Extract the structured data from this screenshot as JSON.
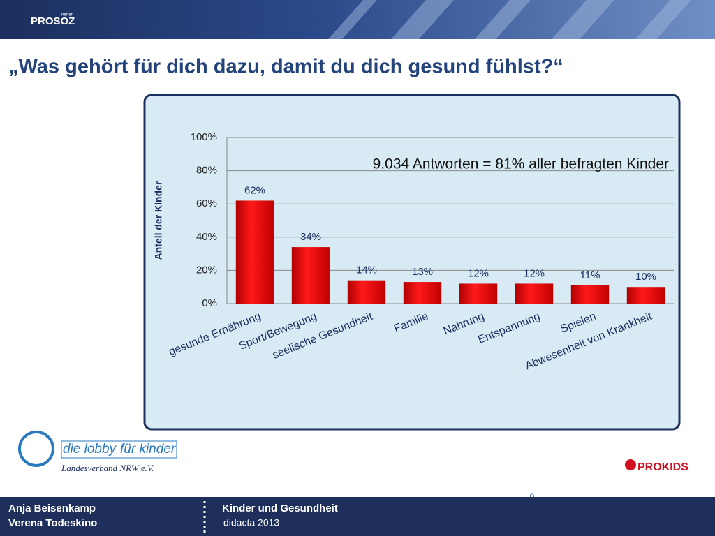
{
  "header": {
    "logo": "PROSOZ",
    "logo_sub": "herten"
  },
  "title": "„Was gehört für dich dazu, damit du dich gesund fühlst?“",
  "chart_data": {
    "type": "bar",
    "ylabel": "Anteil der Kinder",
    "annotation": "9.034 Antworten = 81% aller befragten Kinder",
    "categories": [
      "gesunde Ernährung",
      "Sport/Bewegung",
      "seelische Gesundheit",
      "Familie",
      "Nahrung",
      "Entspannung",
      "Spielen",
      "Abwesenheit von Krankheit"
    ],
    "values": [
      62,
      34,
      14,
      13,
      12,
      12,
      11,
      10
    ],
    "value_labels": [
      "62%",
      "34%",
      "14%",
      "13%",
      "12%",
      "12%",
      "11%",
      "10%"
    ],
    "color": "#e00000",
    "ylim": [
      0,
      100
    ],
    "yticks": [
      {
        "value": 0,
        "label": "0%"
      },
      {
        "value": 20,
        "label": "20%"
      },
      {
        "value": 40,
        "label": "40%"
      },
      {
        "value": 60,
        "label": "60%"
      },
      {
        "value": 80,
        "label": "80%"
      },
      {
        "value": 100,
        "label": "100%"
      }
    ],
    "grid": true
  },
  "logos": {
    "lobby_1": "die lobby",
    "lobby_2": "für kinder",
    "landesverband": "Landesverband NRW e.V.",
    "prokids": "PROKIDS"
  },
  "page_number": 9,
  "footer": {
    "author_1": "Anja Beisenkamp",
    "author_2": "Verena Todeskino",
    "topic": "Kinder und Gesundheit",
    "event": "didacta 2013"
  }
}
